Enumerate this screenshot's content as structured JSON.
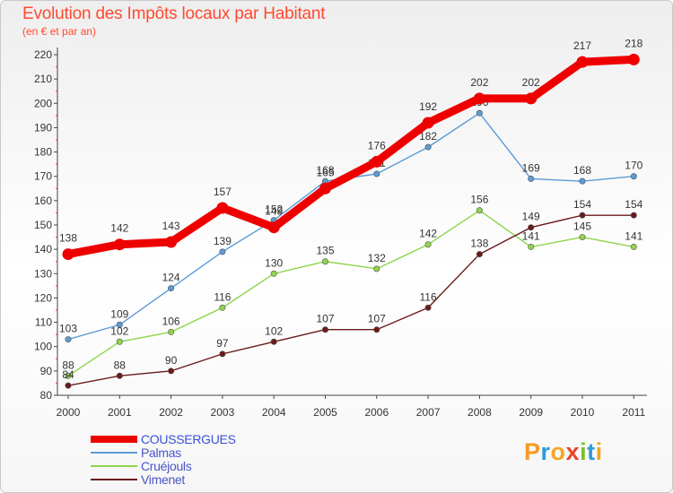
{
  "title": "Evolution des Impôts locaux par Habitant",
  "subtitle": "(en € et par an)",
  "logo": {
    "text": "Proxiti",
    "letters": [
      {
        "ch": "P",
        "color": "#f59a23"
      },
      {
        "ch": "r",
        "color": "#2f9bd8"
      },
      {
        "ch": "o",
        "color": "#f5a623"
      },
      {
        "ch": "x",
        "color": "#e8452c"
      },
      {
        "ch": "i",
        "color": "#7bbf2a"
      },
      {
        "ch": "t",
        "color": "#2f9bd8"
      },
      {
        "ch": "i",
        "color": "#f5a623"
      }
    ]
  },
  "chart_data": {
    "type": "line",
    "title": "Evolution des Impôts locaux par Habitant",
    "ylabel": "(en € et par an)",
    "xlabel": "",
    "categories": [
      "2000",
      "2001",
      "2002",
      "2003",
      "2004",
      "2005",
      "2006",
      "2007",
      "2008",
      "2009",
      "2010",
      "2011"
    ],
    "ylim": [
      80,
      220
    ],
    "yticks": [
      80,
      90,
      100,
      110,
      120,
      130,
      140,
      150,
      160,
      170,
      180,
      190,
      200,
      210,
      220
    ],
    "grid": false,
    "legend": "bottom-left",
    "series": [
      {
        "name": "COUSSERGUES",
        "color": "#ee0000",
        "values": [
          138,
          142,
          143,
          157,
          149,
          165,
          176,
          192,
          202,
          202,
          217,
          218
        ]
      },
      {
        "name": "Palmas",
        "color": "#5b9bd5",
        "values": [
          103,
          109,
          124,
          139,
          152,
          168,
          171,
          182,
          196,
          169,
          168,
          170
        ]
      },
      {
        "name": "Cruéjouls",
        "color": "#8fd44a",
        "values": [
          88,
          102,
          106,
          116,
          130,
          135,
          132,
          142,
          156,
          141,
          145,
          141
        ]
      },
      {
        "name": "Vimenet",
        "color": "#6b1a1a",
        "values": [
          84,
          88,
          90,
          97,
          102,
          107,
          107,
          116,
          138,
          149,
          154,
          154
        ]
      }
    ]
  }
}
